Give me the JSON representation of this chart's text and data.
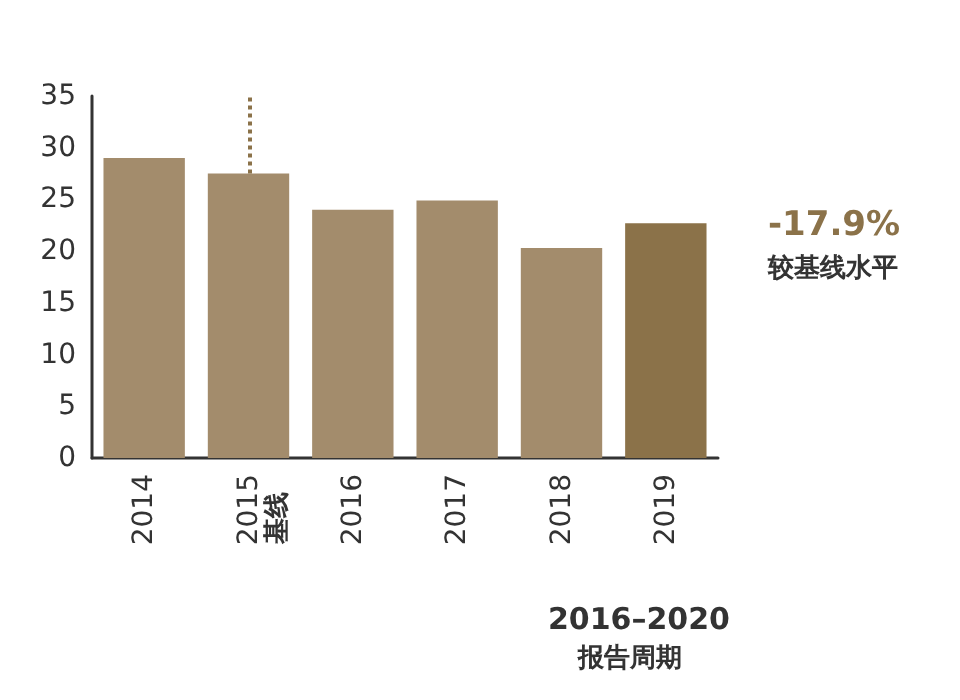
{
  "chart_data": {
    "type": "bar",
    "categories": [
      "2014",
      "2015",
      "2016",
      "2017",
      "2018",
      "2019"
    ],
    "values": [
      29.0,
      27.5,
      24.0,
      24.9,
      20.3,
      22.7
    ],
    "colors": [
      "#a38c6c",
      "#a38c6c",
      "#a38c6c",
      "#a38c6c",
      "#a38c6c",
      "#8b7249"
    ],
    "ylim": [
      0,
      35
    ],
    "yticks": [
      0,
      5,
      10,
      15,
      20,
      25,
      30,
      35
    ],
    "grid": false,
    "ref_lines": [
      {
        "axis": "x",
        "value": "2015",
        "color": "#8b7249",
        "line_style": "dotted"
      }
    ],
    "annotations": [
      "-17.9%",
      "较基线水平",
      "2016–2020",
      "报告周期",
      "基线"
    ]
  }
}
